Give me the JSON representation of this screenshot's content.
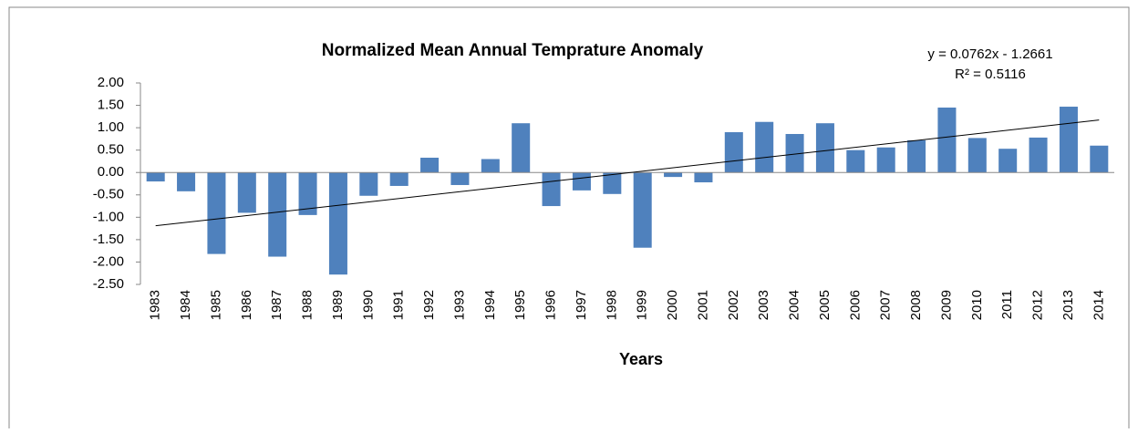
{
  "chart_data": {
    "type": "bar",
    "title": "Normalized Mean Annual Temprature Anomaly",
    "x_label": "Years",
    "categories": [
      "1983",
      "1984",
      "1985",
      "1986",
      "1987",
      "1988",
      "1989",
      "1990",
      "1991",
      "1992",
      "1993",
      "1994",
      "1995",
      "1996",
      "1997",
      "1998",
      "1999",
      "2000",
      "2001",
      "2002",
      "2003",
      "2004",
      "2005",
      "2006",
      "2007",
      "2008",
      "2009",
      "2010",
      "2011",
      "2012",
      "2013",
      "2014"
    ],
    "values": [
      -0.2,
      -0.42,
      -1.82,
      -0.9,
      -1.88,
      -0.95,
      -2.28,
      -0.52,
      -0.3,
      0.33,
      -0.28,
      0.3,
      1.1,
      -0.75,
      -0.4,
      -0.48,
      -1.68,
      -0.1,
      -0.22,
      0.9,
      1.13,
      0.86,
      1.1,
      0.5,
      0.56,
      0.72,
      1.45,
      0.77,
      0.53,
      0.78,
      1.47,
      0.6
    ],
    "color": "#4f81bd",
    "ylim": [
      -2.5,
      2.0
    ],
    "yticks": [
      {
        "value": 2,
        "label": "2.00"
      },
      {
        "value": 1.5,
        "label": "1.50"
      },
      {
        "value": 1,
        "label": "1.00"
      },
      {
        "value": 0.5,
        "label": "0.50"
      },
      {
        "value": 0,
        "label": "0.00"
      },
      {
        "value": -0.5,
        "label": "-0.50"
      },
      {
        "value": -1,
        "label": "-1.00"
      },
      {
        "value": -1.5,
        "label": "-1.50"
      },
      {
        "value": -2,
        "label": "-2.00"
      },
      {
        "value": -2.5,
        "label": "-2.50"
      }
    ],
    "trendline": {
      "equation": "y = 0.0762x - 1.2661",
      "r2_label": "R² = 0.5116",
      "slope": 0.0762,
      "intercept": -1.2661
    }
  }
}
